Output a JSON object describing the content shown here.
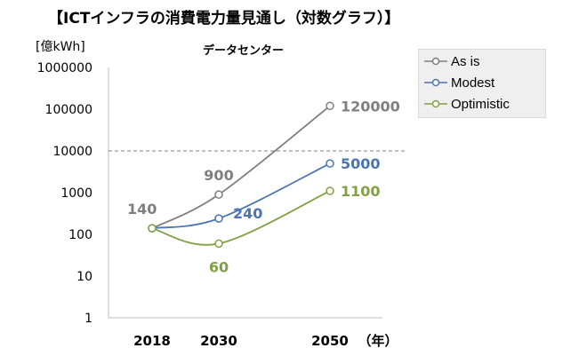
{
  "page": {
    "title": "【ICTインフラの消費電力量見通し（対数グラフ）】",
    "unit_label": "[億kWh]",
    "subtitle": "データセンター",
    "year_unit": "（年）"
  },
  "chart_data": {
    "type": "line",
    "scale": "log",
    "title": "データセンター",
    "ylabel": "[億kWh]",
    "xlabel": "（年）",
    "x": [
      2018,
      2030,
      2050
    ],
    "x_tick_labels": [
      "2018",
      "2030",
      "2050"
    ],
    "ylim": [
      1,
      1000000
    ],
    "y_tick_labels": [
      "1",
      "10",
      "100",
      "1000",
      "10000",
      "100000",
      "1000000"
    ],
    "reference_line": {
      "value": 10000,
      "style": "dashed"
    },
    "series": [
      {
        "name": "As is",
        "color": "#7f7f7f",
        "values": [
          140,
          900,
          120000
        ],
        "labels": [
          "140",
          "900",
          "120000"
        ]
      },
      {
        "name": "Modest",
        "color": "#4a74b4",
        "values": [
          140,
          240,
          5000
        ],
        "labels": [
          "",
          "240",
          "5000"
        ]
      },
      {
        "name": "Optimistic",
        "color": "#7fa143",
        "values": [
          140,
          60,
          1100
        ],
        "labels": [
          "",
          "60",
          "1100"
        ]
      }
    ],
    "legend_position": "top-right"
  }
}
